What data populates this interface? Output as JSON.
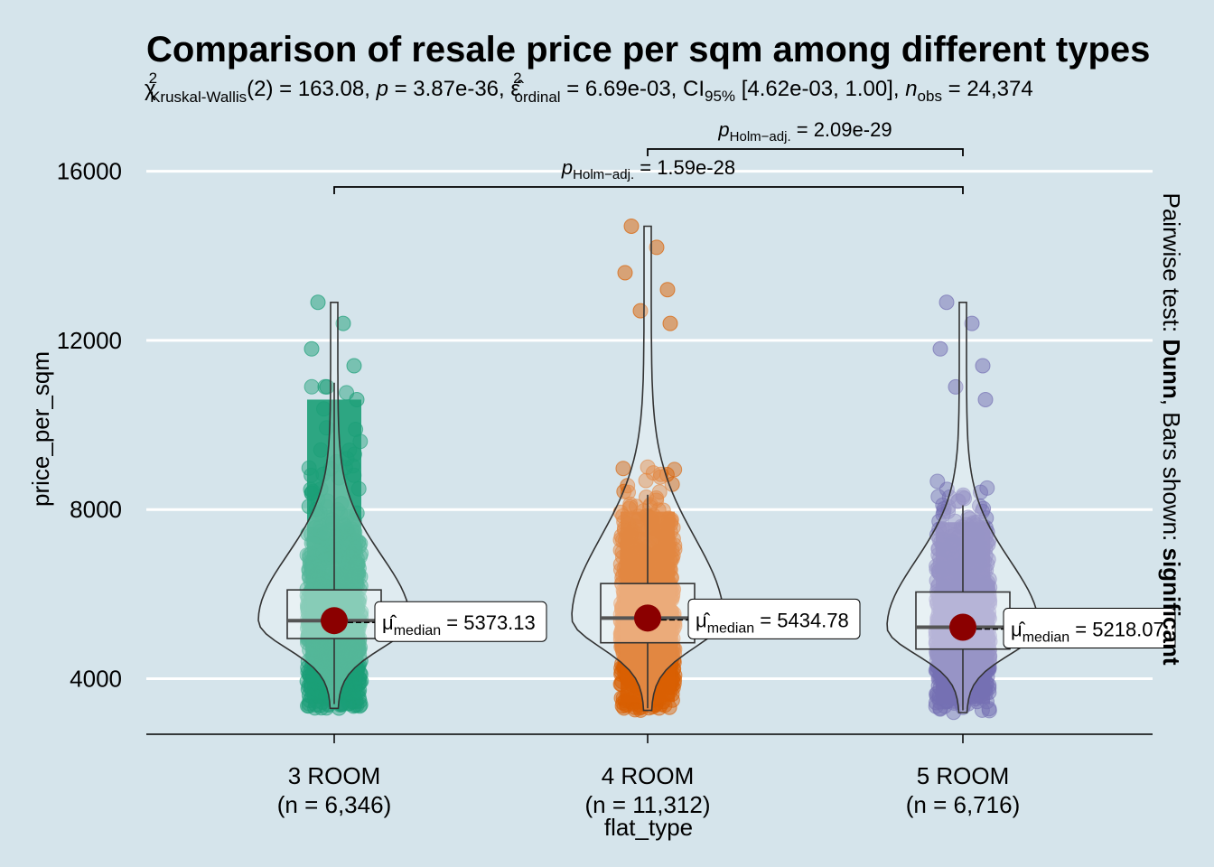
{
  "chart_data": {
    "type": "violin-box-scatter",
    "title": "Comparison of resale price per sqm among different types",
    "subtitle": {
      "stat_symbol": "χ",
      "stat_sup": "2",
      "stat_sub": "Kruskal-Wallis",
      "df": "(2)",
      "stat_value": "= 163.08, ",
      "p_symbol": "p",
      "p_value": " = 3.87e-36, ",
      "effect_symbol": "ε̂",
      "effect_sup": "2",
      "effect_sub": "ordinal",
      "effect_value": " = 6.69e-03, CI",
      "ci_sub": "95%",
      "ci_value": " [4.62e-03, 1.00], ",
      "n_symbol": "n",
      "n_sub": "obs",
      "n_value": " = 24,374"
    },
    "xlabel": "flat_type",
    "ylabel": "price_per_sqm",
    "yticks": [
      4000,
      8000,
      12000,
      16000
    ],
    "ylim": [
      2700,
      17200
    ],
    "grid": true,
    "categories": [
      "3 ROOM",
      "4 ROOM",
      "5 ROOM"
    ],
    "counts": [
      "(n = 6,346)",
      "(n = 11,312)",
      "(n = 6,716)"
    ],
    "colors": [
      "#1b9e77",
      "#d95f02",
      "#7570b3"
    ],
    "groups": [
      {
        "name": "3 ROOM",
        "median": 5373.13,
        "median_label": "= 5373.13",
        "q1": 4950,
        "q3": 6100,
        "whisker_low": 3400,
        "whisker_high": 11000,
        "min": 3300,
        "max": 12900
      },
      {
        "name": "4 ROOM",
        "median": 5434.78,
        "median_label": "= 5434.78",
        "q1": 4850,
        "q3": 6250,
        "whisker_low": 3300,
        "whisker_high": 8350,
        "min": 3250,
        "max": 14700
      },
      {
        "name": "5 ROOM",
        "median": 5218.07,
        "median_label": "= 5218.07",
        "q1": 4700,
        "q3": 6050,
        "whisker_low": 3250,
        "whisker_high": 8100,
        "min": 3200,
        "max": 12900
      }
    ],
    "median_annotation": {
      "symbol": "μ̂",
      "sub": "median"
    },
    "pairwise": [
      {
        "from": 1,
        "to": 2,
        "label_symbol": "p",
        "label_sub": "Holm−adj.",
        "label_value": " = 2.09e-29",
        "y": 15900
      },
      {
        "from": 0,
        "to": 2,
        "label_symbol": "p",
        "label_sub": "Holm−adj.",
        "label_value": " = 1.59e-28",
        "y": 15000
      }
    ],
    "caption": {
      "prefix": "Pairwise test: ",
      "test": "Dunn",
      "middle": ", Bars shown: ",
      "shown": "significant"
    }
  }
}
